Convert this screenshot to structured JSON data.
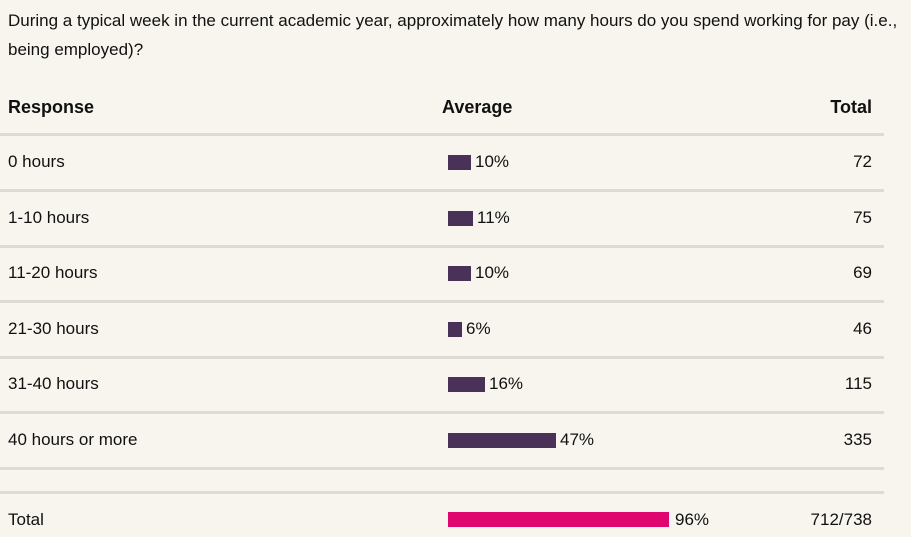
{
  "question": "During a typical week in the current academic year, approximately how many hours do you spend working for pay (i.e., being employed)?",
  "headers": {
    "response": "Response",
    "average": "Average",
    "total": "Total"
  },
  "colors": {
    "bar": "#4a3157",
    "total_bar": "#e0066f",
    "separator": "#dddbd3",
    "background": "#f7f5ee"
  },
  "chart_data": {
    "type": "bar",
    "orientation": "horizontal",
    "categories": [
      "0 hours",
      "1-10 hours",
      "11-20 hours",
      "21-30 hours",
      "31-40 hours",
      "40 hours or more"
    ],
    "values": [
      10,
      11,
      10,
      6,
      16,
      47
    ],
    "value_labels": [
      "10%",
      "11%",
      "10%",
      "6%",
      "16%",
      "47%"
    ],
    "totals": [
      "72",
      "75",
      "69",
      "46",
      "115",
      "335"
    ],
    "summary": {
      "label": "Total",
      "value": 96,
      "value_label": "96%",
      "total": "712/738"
    }
  }
}
